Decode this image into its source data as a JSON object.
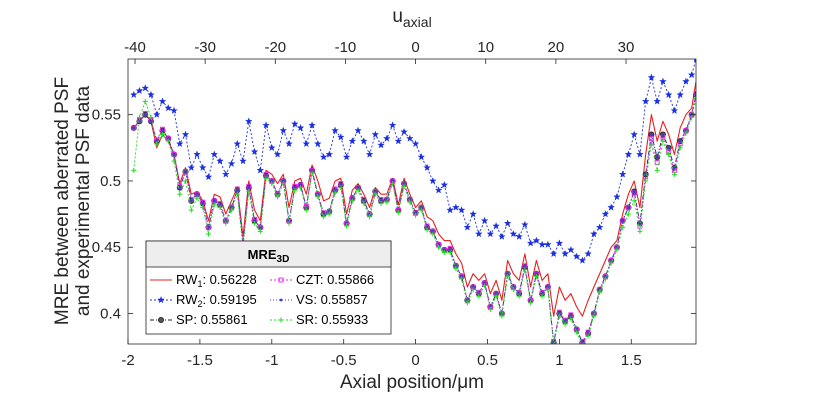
{
  "chart_data": {
    "type": "line",
    "title": "",
    "xlabel": "Axial position/μm",
    "ylabel_line1": "MRE between aberrated PSF",
    "ylabel_line2": "and experimental PSF data",
    "top_axis_label": "u",
    "top_axis_label_sub": "axial",
    "xlim": [
      -2.0,
      1.95
    ],
    "ylim": [
      0.377,
      0.592
    ],
    "xticks": [
      -2,
      -1.5,
      -1,
      -0.5,
      0,
      0.5,
      1,
      1.5
    ],
    "xtick_labels": [
      "-2",
      "-1.5",
      "-1",
      "-0.5",
      "0",
      "0.5",
      "1",
      "1.5"
    ],
    "yticks": [
      0.4,
      0.45,
      0.5,
      0.55
    ],
    "ytick_labels": [
      "0.4",
      "0.45",
      "0.5",
      "0.55"
    ],
    "top_xticks": [
      -40,
      -30,
      -20,
      -10,
      0,
      10,
      20,
      30
    ],
    "top_xtick_labels": [
      "-40",
      "-30",
      "-20",
      "-10",
      "0",
      "10",
      "20",
      "30"
    ],
    "top_axis_scale": 20.5,
    "x": [
      -1.96,
      -1.92,
      -1.88,
      -1.84,
      -1.8,
      -1.76,
      -1.72,
      -1.68,
      -1.64,
      -1.6,
      -1.56,
      -1.52,
      -1.48,
      -1.44,
      -1.4,
      -1.36,
      -1.32,
      -1.28,
      -1.24,
      -1.2,
      -1.16,
      -1.12,
      -1.08,
      -1.04,
      -1.0,
      -0.96,
      -0.92,
      -0.88,
      -0.84,
      -0.8,
      -0.76,
      -0.72,
      -0.68,
      -0.64,
      -0.6,
      -0.56,
      -0.52,
      -0.48,
      -0.44,
      -0.4,
      -0.36,
      -0.32,
      -0.28,
      -0.24,
      -0.2,
      -0.16,
      -0.12,
      -0.08,
      -0.04,
      0.0,
      0.04,
      0.08,
      0.12,
      0.16,
      0.2,
      0.24,
      0.28,
      0.32,
      0.36,
      0.4,
      0.44,
      0.48,
      0.52,
      0.56,
      0.6,
      0.64,
      0.68,
      0.72,
      0.76,
      0.8,
      0.84,
      0.88,
      0.92,
      0.96,
      1.0,
      1.04,
      1.08,
      1.12,
      1.16,
      1.2,
      1.24,
      1.28,
      1.32,
      1.36,
      1.4,
      1.44,
      1.48,
      1.52,
      1.56,
      1.6,
      1.64,
      1.68,
      1.72,
      1.76,
      1.8,
      1.84,
      1.88,
      1.92,
      1.95
    ],
    "series": [
      {
        "name": "RW_1",
        "legend_sub": "1",
        "value_label": "0.56228",
        "color": "#e8201e",
        "dash": "",
        "marker": "none",
        "values": [
          0.54,
          0.545,
          0.55,
          0.545,
          0.525,
          0.535,
          0.53,
          0.52,
          0.498,
          0.51,
          0.49,
          0.492,
          0.485,
          0.47,
          0.49,
          0.488,
          0.475,
          0.485,
          0.495,
          0.458,
          0.5,
          0.478,
          0.47,
          0.508,
          0.505,
          0.498,
          0.505,
          0.48,
          0.5,
          0.502,
          0.49,
          0.512,
          0.5,
          0.485,
          0.487,
          0.5,
          0.502,
          0.475,
          0.493,
          0.498,
          0.49,
          0.48,
          0.495,
          0.49,
          0.49,
          0.502,
          0.482,
          0.502,
          0.49,
          0.48,
          0.485,
          0.473,
          0.47,
          0.46,
          0.455,
          0.455,
          0.445,
          0.438,
          0.42,
          0.43,
          0.425,
          0.43,
          0.415,
          0.425,
          0.41,
          0.44,
          0.43,
          0.425,
          0.445,
          0.42,
          0.44,
          0.425,
          0.43,
          0.398,
          0.42,
          0.41,
          0.415,
          0.405,
          0.398,
          0.41,
          0.42,
          0.43,
          0.44,
          0.45,
          0.455,
          0.475,
          0.49,
          0.5,
          0.48,
          0.52,
          0.55,
          0.53,
          0.545,
          0.535,
          0.52,
          0.54,
          0.55,
          0.555,
          0.575
        ]
      },
      {
        "name": "RW_2",
        "legend_sub": "2",
        "value_label": "0.59195",
        "color": "#1a2fe0",
        "dash": "2,2",
        "marker": "star",
        "values": [
          0.565,
          0.568,
          0.57,
          0.565,
          0.55,
          0.56,
          0.555,
          0.553,
          0.528,
          0.535,
          0.51,
          0.52,
          0.51,
          0.503,
          0.52,
          0.515,
          0.505,
          0.513,
          0.528,
          0.515,
          0.545,
          0.522,
          0.508,
          0.542,
          0.525,
          0.52,
          0.538,
          0.528,
          0.543,
          0.54,
          0.528,
          0.542,
          0.528,
          0.518,
          0.52,
          0.538,
          0.533,
          0.518,
          0.53,
          0.538,
          0.53,
          0.52,
          0.535,
          0.527,
          0.532,
          0.542,
          0.53,
          0.537,
          0.532,
          0.528,
          0.518,
          0.51,
          0.5,
          0.493,
          0.497,
          0.478,
          0.48,
          0.478,
          0.465,
          0.475,
          0.46,
          0.47,
          0.46,
          0.466,
          0.458,
          0.468,
          0.46,
          0.458,
          0.467,
          0.453,
          0.455,
          0.452,
          0.452,
          0.445,
          0.453,
          0.445,
          0.448,
          0.443,
          0.44,
          0.445,
          0.46,
          0.465,
          0.475,
          0.48,
          0.488,
          0.505,
          0.52,
          0.535,
          0.52,
          0.56,
          0.578,
          0.56,
          0.575,
          0.565,
          0.553,
          0.565,
          0.575,
          0.58,
          0.592
        ]
      },
      {
        "name": "SP",
        "legend_sub": "",
        "value_label": "0.55861",
        "color": "#222222",
        "dash": "4,2,1,2",
        "marker": "circle",
        "values": [
          0.54,
          0.545,
          0.55,
          0.545,
          0.53,
          0.538,
          0.532,
          0.52,
          0.495,
          0.507,
          0.485,
          0.49,
          0.483,
          0.465,
          0.485,
          0.482,
          0.47,
          0.48,
          0.493,
          0.452,
          0.495,
          0.47,
          0.465,
          0.504,
          0.5,
          0.49,
          0.5,
          0.47,
          0.495,
          0.497,
          0.48,
          0.508,
          0.49,
          0.475,
          0.477,
          0.493,
          0.497,
          0.468,
          0.487,
          0.495,
          0.485,
          0.475,
          0.492,
          0.485,
          0.486,
          0.5,
          0.478,
          0.498,
          0.486,
          0.476,
          0.48,
          0.465,
          0.462,
          0.452,
          0.448,
          0.448,
          0.436,
          0.428,
          0.41,
          0.42,
          0.415,
          0.423,
          0.405,
          0.415,
          0.4,
          0.43,
          0.42,
          0.415,
          0.435,
          0.41,
          0.43,
          0.415,
          0.42,
          0.378,
          0.4,
          0.394,
          0.398,
          0.388,
          0.378,
          0.385,
          0.4,
          0.418,
          0.428,
          0.44,
          0.45,
          0.47,
          0.48,
          0.492,
          0.468,
          0.505,
          0.535,
          0.518,
          0.535,
          0.525,
          0.51,
          0.53,
          0.538,
          0.55,
          0.565
        ]
      },
      {
        "name": "CZT",
        "legend_sub": "",
        "value_label": "0.55866",
        "color": "#ee22ee",
        "dash": "2,2",
        "marker": "square",
        "values": [
          0.54,
          0.546,
          0.551,
          0.546,
          0.531,
          0.539,
          0.532,
          0.52,
          0.496,
          0.507,
          0.486,
          0.49,
          0.484,
          0.465,
          0.485,
          0.483,
          0.47,
          0.48,
          0.494,
          0.453,
          0.496,
          0.471,
          0.465,
          0.505,
          0.5,
          0.49,
          0.5,
          0.47,
          0.496,
          0.497,
          0.481,
          0.508,
          0.49,
          0.476,
          0.477,
          0.494,
          0.498,
          0.468,
          0.487,
          0.495,
          0.486,
          0.475,
          0.492,
          0.486,
          0.486,
          0.5,
          0.478,
          0.498,
          0.486,
          0.476,
          0.48,
          0.466,
          0.462,
          0.452,
          0.448,
          0.449,
          0.436,
          0.428,
          0.41,
          0.42,
          0.416,
          0.423,
          0.405,
          0.415,
          0.4,
          0.43,
          0.42,
          0.416,
          0.436,
          0.41,
          0.43,
          0.416,
          0.42,
          0.379,
          0.401,
          0.395,
          0.399,
          0.388,
          0.379,
          0.386,
          0.4,
          0.418,
          0.428,
          0.44,
          0.45,
          0.47,
          0.48,
          0.491,
          0.466,
          0.503,
          0.532,
          0.514,
          0.533,
          0.522,
          0.508,
          0.528,
          0.538,
          0.55,
          0.566
        ]
      },
      {
        "name": "VS",
        "legend_sub": "",
        "value_label": "0.55857",
        "color": "#3040d0",
        "dash": "1,2",
        "marker": "dot",
        "values": [
          0.54,
          0.545,
          0.55,
          0.545,
          0.53,
          0.538,
          0.532,
          0.52,
          0.495,
          0.507,
          0.485,
          0.49,
          0.483,
          0.465,
          0.485,
          0.482,
          0.47,
          0.48,
          0.493,
          0.452,
          0.495,
          0.47,
          0.465,
          0.504,
          0.5,
          0.49,
          0.5,
          0.47,
          0.495,
          0.497,
          0.48,
          0.508,
          0.49,
          0.475,
          0.477,
          0.493,
          0.497,
          0.468,
          0.487,
          0.495,
          0.485,
          0.475,
          0.492,
          0.485,
          0.486,
          0.5,
          0.478,
          0.498,
          0.486,
          0.476,
          0.48,
          0.465,
          0.462,
          0.452,
          0.448,
          0.448,
          0.436,
          0.428,
          0.41,
          0.42,
          0.415,
          0.423,
          0.405,
          0.415,
          0.4,
          0.43,
          0.42,
          0.415,
          0.435,
          0.41,
          0.43,
          0.415,
          0.42,
          0.378,
          0.4,
          0.394,
          0.398,
          0.388,
          0.378,
          0.385,
          0.4,
          0.418,
          0.428,
          0.44,
          0.45,
          0.47,
          0.48,
          0.492,
          0.468,
          0.505,
          0.535,
          0.518,
          0.535,
          0.525,
          0.51,
          0.53,
          0.538,
          0.55,
          0.565
        ]
      },
      {
        "name": "SR",
        "legend_sub": "",
        "value_label": "0.55933",
        "color": "#22dd22",
        "dash": "2,2",
        "marker": "plus",
        "values": [
          0.508,
          0.548,
          0.56,
          0.548,
          0.528,
          0.535,
          0.53,
          0.515,
          0.49,
          0.5,
          0.478,
          0.487,
          0.48,
          0.46,
          0.482,
          0.48,
          0.468,
          0.478,
          0.49,
          0.45,
          0.492,
          0.468,
          0.462,
          0.502,
          0.498,
          0.488,
          0.498,
          0.468,
          0.493,
          0.495,
          0.478,
          0.506,
          0.488,
          0.473,
          0.475,
          0.491,
          0.495,
          0.466,
          0.485,
          0.493,
          0.483,
          0.473,
          0.49,
          0.483,
          0.484,
          0.498,
          0.476,
          0.496,
          0.484,
          0.474,
          0.478,
          0.463,
          0.46,
          0.45,
          0.446,
          0.446,
          0.434,
          0.426,
          0.408,
          0.418,
          0.413,
          0.421,
          0.403,
          0.413,
          0.398,
          0.428,
          0.418,
          0.413,
          0.433,
          0.408,
          0.428,
          0.413,
          0.418,
          0.376,
          0.398,
          0.392,
          0.396,
          0.386,
          0.376,
          0.383,
          0.398,
          0.416,
          0.426,
          0.438,
          0.448,
          0.465,
          0.475,
          0.485,
          0.462,
          0.5,
          0.528,
          0.508,
          0.53,
          0.52,
          0.505,
          0.525,
          0.536,
          0.548,
          0.562
        ]
      }
    ],
    "legend": {
      "title": "MRE",
      "title_sub": "3D",
      "placement": "lower-left",
      "order": [
        "RW_1",
        "CZT",
        "RW_2",
        "VS",
        "SP",
        "SR"
      ]
    }
  }
}
